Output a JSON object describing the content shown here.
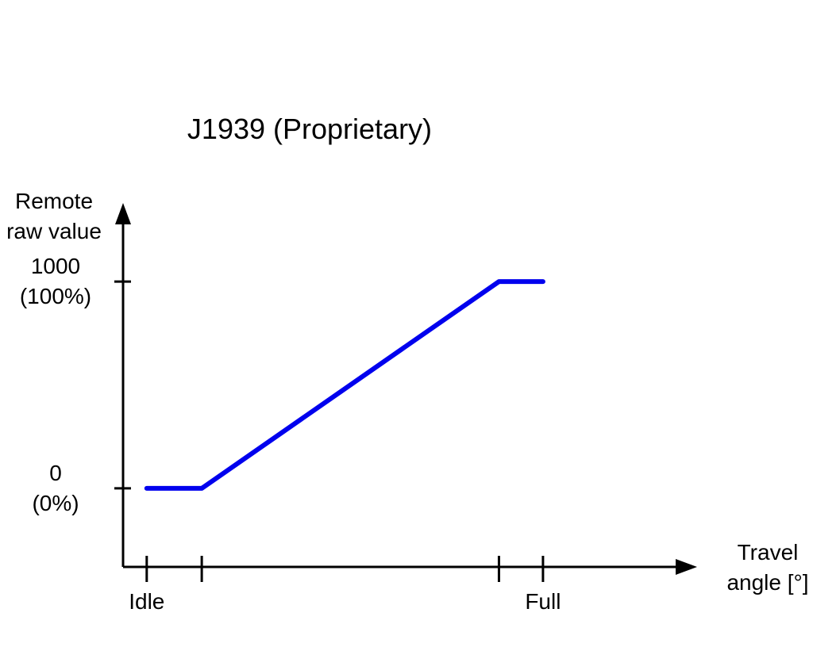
{
  "chart_data": {
    "type": "line",
    "title": "J1939 (Proprietary)",
    "ylabel": [
      "Remote",
      "raw value"
    ],
    "xlabel": [
      "Travel",
      "angle [°]"
    ],
    "x_ticks": [
      {
        "id": "idle",
        "value": 0,
        "label": "Idle"
      },
      {
        "id": "idle-end",
        "value": 1,
        "label": ""
      },
      {
        "id": "full-start",
        "value": 6.4,
        "label": ""
      },
      {
        "id": "full",
        "value": 7.2,
        "label": "Full"
      }
    ],
    "y_ticks": [
      {
        "id": "zero",
        "value": 0,
        "label": [
          "0",
          "(0%)"
        ]
      },
      {
        "id": "max",
        "value": 1000,
        "label": [
          "1000",
          "(100%)"
        ]
      }
    ],
    "series": [
      {
        "color": "#0000ee",
        "points": [
          [
            0,
            0
          ],
          [
            1,
            0
          ],
          [
            6.4,
            1000
          ],
          [
            7.2,
            1000
          ]
        ]
      }
    ],
    "xlim": [
      -0.43,
      10
    ],
    "ylim": [
      -380,
      1380
    ],
    "grid": false
  }
}
